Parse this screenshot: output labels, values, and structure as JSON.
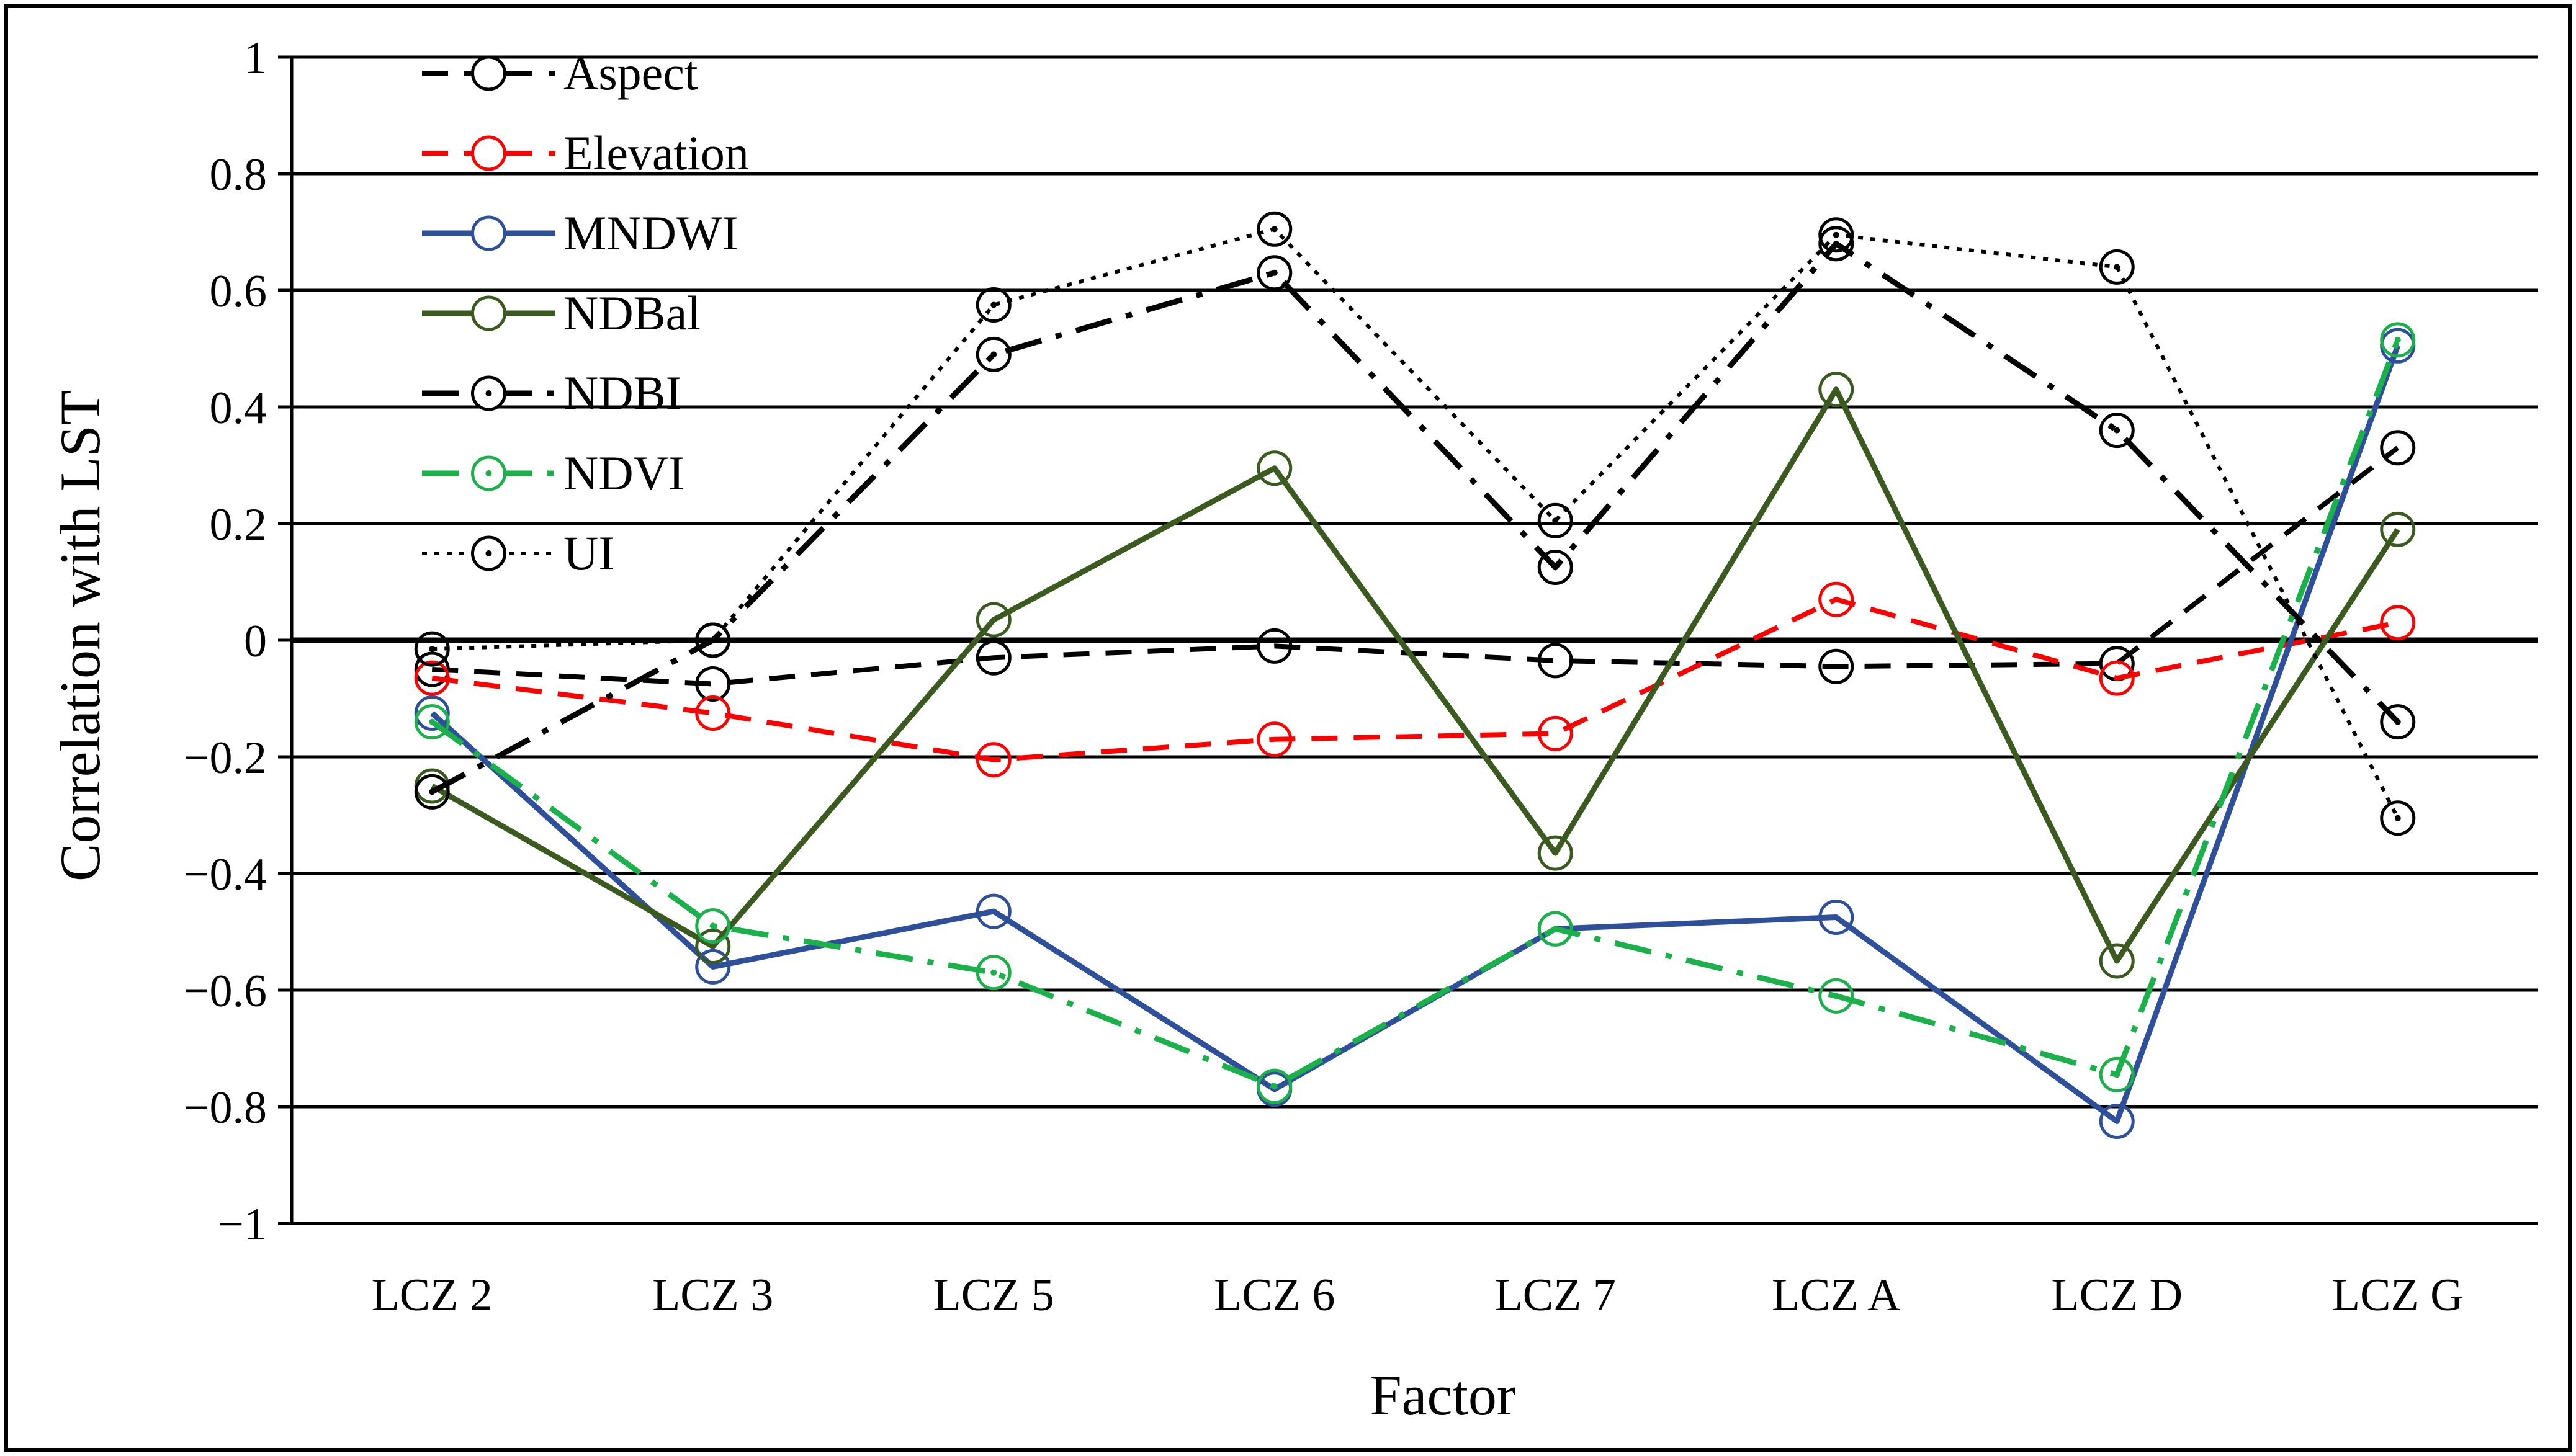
{
  "chart_data": {
    "type": "line",
    "title": "",
    "xlabel": "Factor",
    "ylabel": "Correlation  with LST",
    "ylim": [
      -1,
      1
    ],
    "yticks": [
      1,
      0.8,
      0.6,
      0.4,
      0.2,
      0,
      -0.2,
      -0.4,
      -0.6,
      -0.8,
      -1
    ],
    "ytick_labels": [
      "1",
      "0.8",
      "0.6",
      "0.4",
      "0.2",
      "0",
      "−0.2",
      "−0.4",
      "−0.6",
      "−0.8",
      "−1"
    ],
    "grid": true,
    "legend_position": "top-left",
    "categories": [
      "LCZ 2",
      "LCZ 3",
      "LCZ 5",
      "LCZ 6",
      "LCZ 7",
      "LCZ A",
      "LCZ D",
      "LCZ G"
    ],
    "series": [
      {
        "name": "Aspect",
        "values": [
          -0.05,
          -0.075,
          -0.03,
          -0.01,
          -0.035,
          -0.045,
          -0.04,
          0.33
        ],
        "color": "#000000",
        "dash": "dash",
        "marker_dot": false
      },
      {
        "name": "Elevation",
        "values": [
          -0.065,
          -0.125,
          -0.205,
          -0.17,
          -0.16,
          0.07,
          -0.065,
          0.03
        ],
        "color": "#ff0000",
        "dash": "dash",
        "marker_dot": false
      },
      {
        "name": "MNDWI",
        "values": [
          -0.125,
          -0.56,
          -0.465,
          -0.77,
          -0.495,
          -0.475,
          -0.825,
          0.505
        ],
        "color": "#2e4f9a",
        "dash": "solid",
        "marker_dot": false
      },
      {
        "name": "NDBal",
        "values": [
          -0.25,
          -0.525,
          0.035,
          0.295,
          -0.365,
          0.43,
          -0.55,
          0.19
        ],
        "color": "#3b5a1f",
        "dash": "solid",
        "marker_dot": false
      },
      {
        "name": "NDBI",
        "values": [
          -0.26,
          0.0,
          0.49,
          0.63,
          0.125,
          0.68,
          0.36,
          -0.14
        ],
        "color": "#000000",
        "dash": "dashdot",
        "marker_dot": true
      },
      {
        "name": "NDVI",
        "values": [
          -0.14,
          -0.49,
          -0.57,
          -0.765,
          -0.495,
          -0.61,
          -0.745,
          0.515
        ],
        "color": "#1ab04a",
        "dash": "dashdot",
        "marker_dot": true
      },
      {
        "name": "UI",
        "values": [
          -0.015,
          0.0,
          0.575,
          0.705,
          0.205,
          0.695,
          0.64,
          -0.305
        ],
        "color": "#000000",
        "dash": "dot",
        "marker_dot": true
      }
    ]
  }
}
